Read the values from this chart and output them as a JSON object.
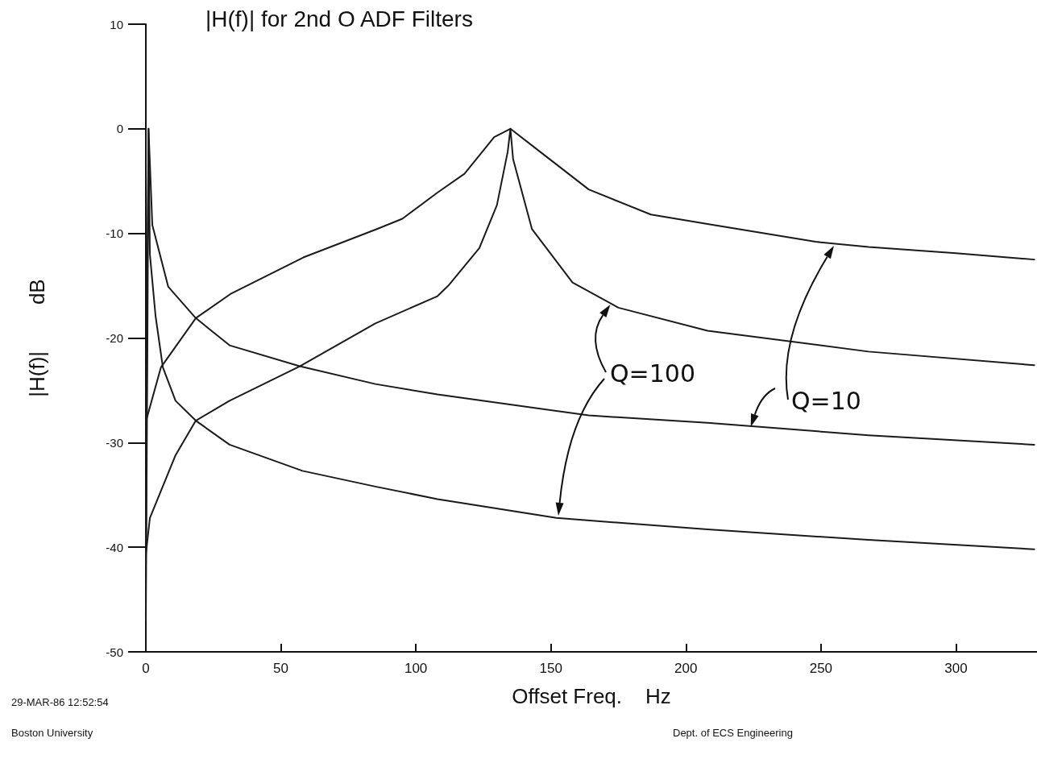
{
  "chart_data": {
    "type": "line",
    "title": "|H(f)| for 2nd O ADF Filters",
    "xlabel": "Offset Freq.    Hz",
    "ylabel": "|H(f)|        dB",
    "annotations": [
      {
        "text": "Q=100",
        "x": 172,
        "y": -16.8
      },
      {
        "text": "Q=10",
        "x": 224,
        "y": -28.5
      },
      "29-MAR-86 12:52:54",
      "Boston University",
      "Dept. of ECS Engineering"
    ],
    "series": [
      {
        "color": "#1a1a1a",
        "x": [
          0,
          5.6,
          18.5,
          31.3,
          58.3,
          85.4,
          95,
          108,
          118,
          129,
          135,
          146,
          164,
          187,
          208,
          248,
          267.6,
          300,
          329
        ],
        "values": [
          -28,
          -22.8,
          -18.1,
          -15.8,
          -12.3,
          -9.6,
          -8.6,
          -6.1,
          -4.3,
          -0.8,
          0,
          -2.2,
          -5.8,
          -8.2,
          -9.1,
          -10.8,
          -11.3,
          -11.9,
          -12.5
        ]
      },
      {
        "color": "#1a1a1a",
        "x": [
          0,
          1.5,
          11,
          18.5,
          31,
          57,
          85,
          108,
          112,
          123.5,
          130,
          134,
          135,
          136,
          143,
          158,
          175,
          208,
          267.6,
          329
        ],
        "values": [
          -40.7,
          -37.2,
          -31.2,
          -27.9,
          -26,
          -22.7,
          -18.6,
          -16,
          -15,
          -11.4,
          -7.3,
          -2.2,
          0,
          -2.9,
          -9.6,
          -14.7,
          -17.1,
          -19.3,
          -21.3,
          -22.6
        ]
      },
      {
        "color": "#1a1a1a",
        "x": [
          0,
          0.5,
          1,
          2.4,
          8.3,
          18.5,
          31,
          57,
          85,
          108,
          164,
          208,
          267.6,
          329
        ],
        "values": [
          -42,
          -15,
          0,
          -9.2,
          -15.1,
          -18.1,
          -20.7,
          -22.7,
          -24.4,
          -25.4,
          -27.4,
          -28.1,
          -29.3,
          -30.2
        ]
      },
      {
        "color": "#1a1a1a",
        "x": [
          0,
          0.6,
          1,
          1.5,
          3.6,
          6.3,
          11,
          18.5,
          31,
          58,
          85,
          108,
          152,
          208,
          267.6,
          329
        ],
        "values": [
          -47,
          -20,
          0,
          -12,
          -17.9,
          -22.8,
          -26,
          -27.9,
          -30.2,
          -32.7,
          -34.2,
          -35.4,
          -37.2,
          -38.3,
          -39.3,
          -40.2
        ]
      }
    ],
    "xlim": [
      0,
      330
    ],
    "xticks": [
      0,
      50,
      100,
      150,
      200,
      250,
      300
    ],
    "ylim": [
      -50,
      10
    ],
    "yticks": [
      -50,
      -40,
      -30,
      -20,
      -10,
      0,
      10
    ],
    "grid": false,
    "line_style": "solid",
    "marker": "none"
  }
}
